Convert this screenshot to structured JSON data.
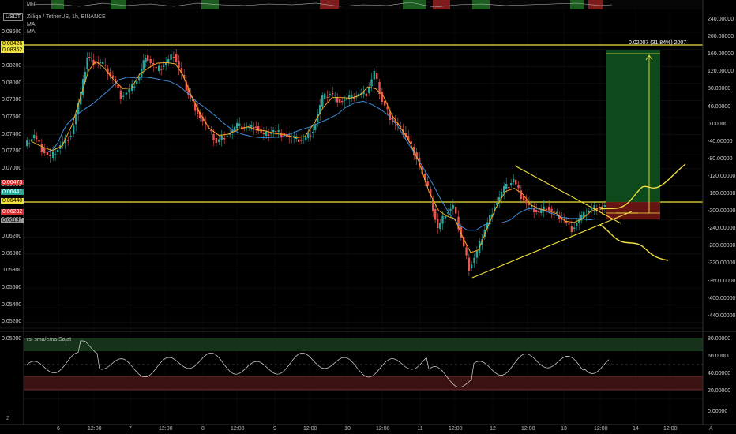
{
  "header": {
    "symbol_badge": "USDT",
    "title": "Zilliqa / TetherUS, 1h, BINANCE",
    "indicators": [
      "MA",
      "MA"
    ],
    "top_pane_label": "MFI",
    "rsi_label": "rsi sma/ema Sajat",
    "bottom_left_label": "Z",
    "bottom_right_label": "A"
  },
  "price_axis": {
    "left_ticks": [
      "0.08600",
      "0.08400",
      "0.08200",
      "0.08000",
      "0.07800",
      "0.07600",
      "0.07400",
      "0.07200",
      "0.07000",
      "0.06800",
      "0.06600",
      "0.06400",
      "0.06200",
      "0.06000",
      "0.05800",
      "0.05600",
      "0.05400",
      "0.05200",
      "0.05000"
    ],
    "right_ticks": [
      "240.00000",
      "200.00000",
      "160.00000",
      "120.00000",
      "80.00000",
      "40.00000",
      "0.00000",
      "-40.00000",
      "-80.00000",
      "-120.00000",
      "-160.00000",
      "-200.00000",
      "-240.00000",
      "-280.00000",
      "-320.00000",
      "-360.00000",
      "-400.00000",
      "-440.00000"
    ],
    "badges": [
      {
        "text": "0.08426",
        "bg": "#f0e040",
        "fg": "#000"
      },
      {
        "text": "0.08352",
        "bg": "#f0e040",
        "fg": "#000"
      },
      {
        "text": "0.06473",
        "bg": "#d32f2f",
        "fg": "#fff"
      },
      {
        "text": "0.06441",
        "bg": "#26a69a",
        "fg": "#fff"
      },
      {
        "text": "0.06440",
        "bg": "#f0e040",
        "fg": "#000"
      },
      {
        "text": "0.06232",
        "bg": "#d32f2f",
        "fg": "#fff"
      },
      {
        "text": "0.06197",
        "bg": "#9e9e9e",
        "fg": "#000"
      }
    ]
  },
  "rsi_axis": {
    "right_ticks": [
      "80.00000",
      "60.00000",
      "40.00000",
      "20.00000",
      "0.00000"
    ]
  },
  "time_axis": [
    "6",
    "12:00",
    "7",
    "12:00",
    "8",
    "12:00",
    "9",
    "12:00",
    "10",
    "12:00",
    "11",
    "12:00",
    "12",
    "12:00",
    "13",
    "12:00",
    "14",
    "12:00"
  ],
  "annotations": {
    "measure_label": "0.02007 (31.84%) 2007"
  },
  "colors": {
    "up": "#26a69a",
    "down": "#ef5350",
    "level": "#f0e040",
    "ma_fast": "#f5a623",
    "ma_slow": "#3d8bd6"
  }
}
